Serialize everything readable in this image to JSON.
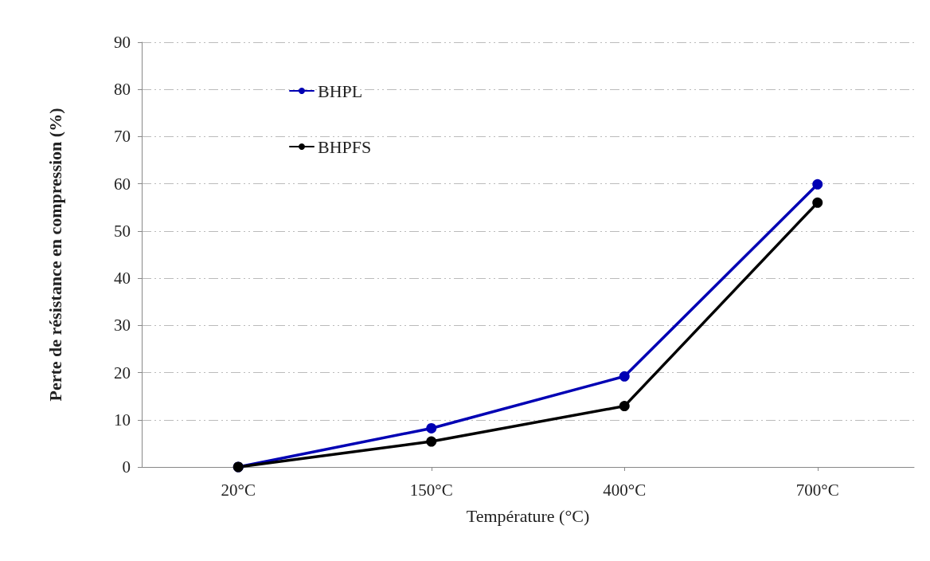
{
  "chart_data": {
    "type": "line",
    "xlabel": "Température (°C)",
    "ylabel": "Perte de résistance en compression (%)",
    "categories": [
      "20°C",
      "150°C",
      "400°C",
      "700°C"
    ],
    "series": [
      {
        "name": "BHPL",
        "color": "#0000b4",
        "values": [
          0,
          8.2,
          19.2,
          59.9
        ]
      },
      {
        "name": "BHPFS",
        "color": "#000000",
        "values": [
          0,
          5.4,
          12.9,
          56
        ]
      }
    ],
    "ylim": [
      0,
      90
    ],
    "yticks": [
      0,
      10,
      20,
      30,
      40,
      50,
      60,
      70,
      80,
      90
    ],
    "grid": "y",
    "legend": "top left",
    "marker": "circle",
    "line_style": "solid"
  }
}
